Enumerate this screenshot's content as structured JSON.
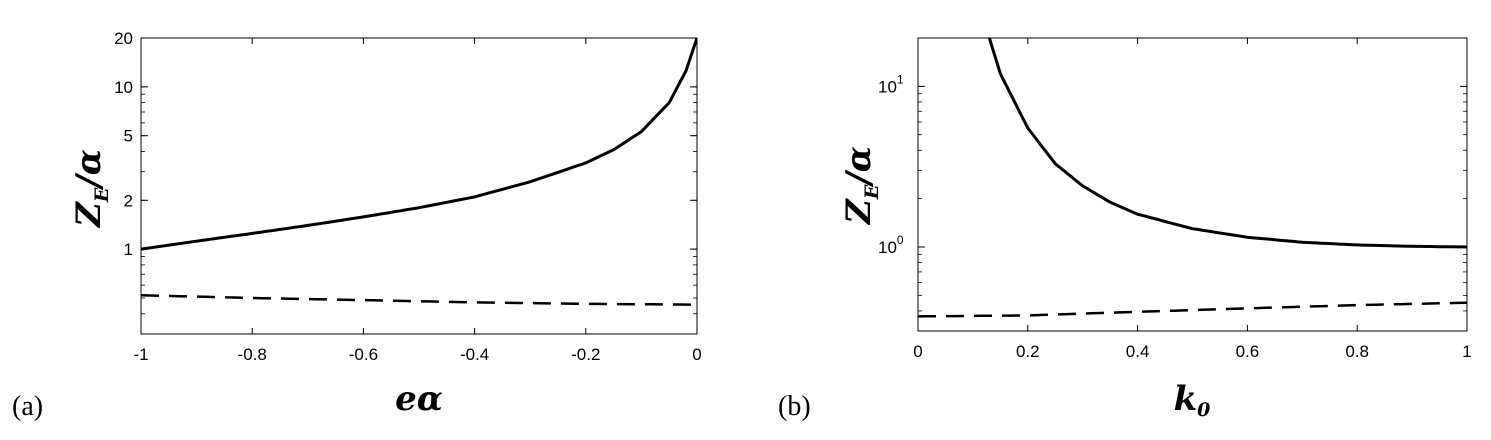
{
  "chart_data": [
    {
      "type": "line",
      "panel_label": "(a)",
      "xlabel": "eα",
      "ylabel": {
        "main": "Z",
        "sub": "E",
        "tail": "/α"
      },
      "xlim": [
        -1,
        0
      ],
      "ylim": [
        0.3,
        20
      ],
      "yscale": "log",
      "xticks": [
        -1,
        -0.8,
        -0.6,
        -0.4,
        -0.2,
        0
      ],
      "xtick_labels": [
        "-1",
        "-0.8",
        "-0.6",
        "-0.4",
        "-0.2",
        "0"
      ],
      "yticks": [
        1,
        2,
        5,
        10,
        20
      ],
      "ytick_labels": [
        "1",
        "2",
        "5",
        "10",
        "20"
      ],
      "grid": false,
      "series": [
        {
          "style": "solid",
          "x": [
            -1,
            -0.9,
            -0.8,
            -0.7,
            -0.6,
            -0.5,
            -0.4,
            -0.3,
            -0.2,
            -0.15,
            -0.1,
            -0.05,
            -0.02,
            0
          ],
          "y": [
            1.0,
            1.12,
            1.25,
            1.4,
            1.58,
            1.8,
            2.1,
            2.6,
            3.4,
            4.1,
            5.3,
            8.0,
            12.5,
            20
          ]
        },
        {
          "style": "dashed",
          "x": [
            -1,
            -0.8,
            -0.6,
            -0.4,
            -0.2,
            0
          ],
          "y": [
            0.52,
            0.5,
            0.485,
            0.47,
            0.46,
            0.455
          ]
        }
      ]
    },
    {
      "type": "line",
      "panel_label": "(b)",
      "xlabel": "k",
      "xlabel_sub": "0",
      "ylabel": {
        "main": "Z",
        "sub": "E",
        "tail": "/α"
      },
      "xlim": [
        0,
        1
      ],
      "ylim": [
        0.3,
        20
      ],
      "yscale": "log",
      "xticks": [
        0,
        0.2,
        0.4,
        0.6,
        0.8,
        1
      ],
      "xtick_labels": [
        "0",
        "0.2",
        "0.4",
        "0.6",
        "0.8",
        "1"
      ],
      "yticks": [
        1,
        10
      ],
      "ytick_labels": [
        {
          "base": "10",
          "exp": "0"
        },
        {
          "base": "10",
          "exp": "1"
        }
      ],
      "grid": false,
      "series": [
        {
          "style": "solid",
          "x": [
            0.13,
            0.15,
            0.2,
            0.25,
            0.3,
            0.35,
            0.4,
            0.5,
            0.6,
            0.7,
            0.8,
            0.9,
            1.0
          ],
          "y": [
            20,
            12,
            5.5,
            3.3,
            2.4,
            1.9,
            1.6,
            1.3,
            1.15,
            1.07,
            1.03,
            1.01,
            1.0
          ]
        },
        {
          "style": "dashed",
          "x": [
            0,
            0.2,
            0.4,
            0.6,
            0.8,
            1.0
          ],
          "y": [
            0.37,
            0.375,
            0.395,
            0.415,
            0.435,
            0.45
          ]
        }
      ]
    }
  ]
}
